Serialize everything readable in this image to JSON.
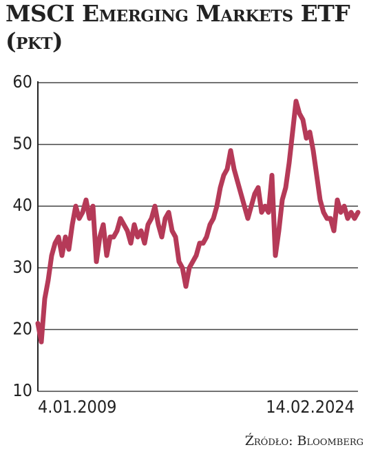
{
  "chart_data": {
    "type": "line",
    "title": "MSCI Emerging Markets ETF (pkt)",
    "source": "Źródło: Bloomberg",
    "color": "#b53a58",
    "grid": true,
    "ylim": [
      10,
      60
    ],
    "yticks": [
      10,
      20,
      30,
      40,
      50,
      60
    ],
    "categories": [
      "4.01.2009",
      null,
      null,
      null,
      null,
      null,
      null,
      null,
      null,
      null,
      null,
      null,
      null,
      null,
      null,
      null,
      null,
      null,
      null,
      null,
      null,
      null,
      null,
      null,
      null,
      null,
      null,
      null,
      null,
      null,
      null,
      null,
      null,
      null,
      null,
      null,
      null,
      null,
      null,
      null,
      null,
      null,
      null,
      null,
      null,
      null,
      null,
      null,
      null,
      null,
      null,
      null,
      null,
      null,
      null,
      null,
      null,
      null,
      null,
      null,
      null,
      null,
      null,
      null,
      null,
      null,
      null,
      null,
      null,
      null,
      null,
      null,
      null,
      null,
      null,
      null,
      null,
      null,
      null,
      null,
      null,
      null,
      null,
      null,
      null,
      null,
      null,
      null,
      null,
      null,
      null,
      null,
      null,
      "14.02.2024"
    ],
    "values": [
      21,
      18,
      25,
      28,
      32,
      34,
      35,
      32,
      35,
      33,
      37,
      40,
      38,
      39,
      41,
      38,
      40,
      31,
      35,
      37,
      32,
      35,
      35,
      36,
      38,
      37,
      36,
      34,
      37,
      35,
      36,
      34,
      37,
      38,
      40,
      37,
      35,
      38,
      39,
      36,
      35,
      31,
      30,
      27,
      30,
      31,
      32,
      34,
      34,
      35,
      37,
      38,
      40,
      43,
      45,
      46,
      49,
      46,
      44,
      42,
      40,
      38,
      40,
      42,
      43,
      39,
      40,
      39,
      45,
      32,
      36,
      41,
      43,
      47,
      52,
      57,
      55,
      54,
      51,
      52,
      49,
      45,
      41,
      39,
      38,
      38,
      36,
      41,
      39,
      40,
      38,
      39,
      38,
      39
    ]
  }
}
